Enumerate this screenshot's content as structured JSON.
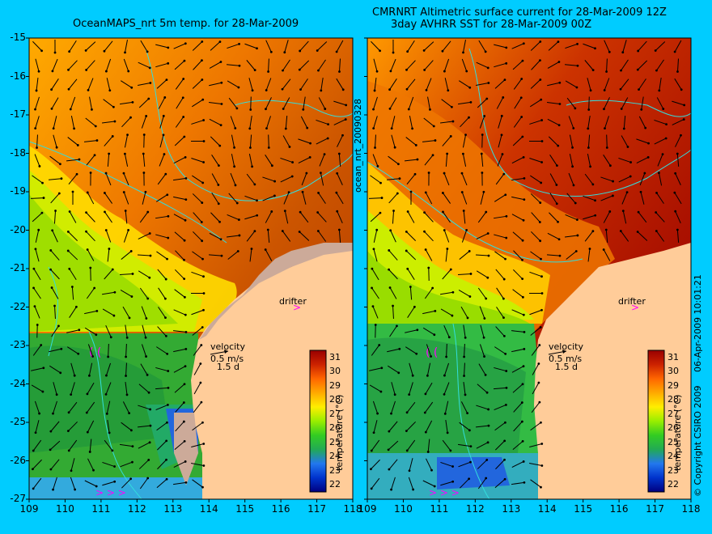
{
  "titles": {
    "left": "OceanMAPS_nrt 5m temp. for 28-Mar-2009",
    "right_line1": "CMRNRT Altimetric surface current for 28-Mar-2009 12Z",
    "right_line2": "3day AVHRR SST for 28-Mar-2009 00Z"
  },
  "axes": {
    "y_ticks": [
      "-15",
      "-16",
      "-17",
      "-18",
      "-19",
      "-20",
      "-21",
      "-22",
      "-23",
      "-24",
      "-25",
      "-26",
      "-27"
    ],
    "x_ticks": [
      "109",
      "110",
      "111",
      "112",
      "113",
      "114",
      "115",
      "116",
      "117",
      "118"
    ],
    "x_range": [
      109,
      118
    ],
    "y_range": [
      -27,
      -15
    ]
  },
  "annotations": {
    "center_vertical": "ocean_nrt_20090328",
    "right_vertical": "06-Apr-2009 10:01:21",
    "copyright": "© Copyright CSIRO 2009",
    "drifter": "drifter",
    "velocity": "velocity",
    "velocity_scale": "0.5 m/s",
    "velocity_time": "1.5 d"
  },
  "colorbar": {
    "title": "temperature (°C)",
    "ticks": [
      "31",
      "30",
      "29",
      "28",
      "27",
      "26",
      "25",
      "24",
      "23",
      "22"
    ],
    "range": [
      21.5,
      31.5
    ],
    "colors": [
      "#000080",
      "#0033cc",
      "#2277ee",
      "#22aa55",
      "#33cc22",
      "#99ee00",
      "#ffee00",
      "#ffaa00",
      "#ff6600",
      "#cc2200",
      "#990000"
    ]
  },
  "colors": {
    "background": "#00ccff",
    "land": "#ffcc99",
    "contour": "#33dddd",
    "drifter_marker": "#ff00ff"
  }
}
